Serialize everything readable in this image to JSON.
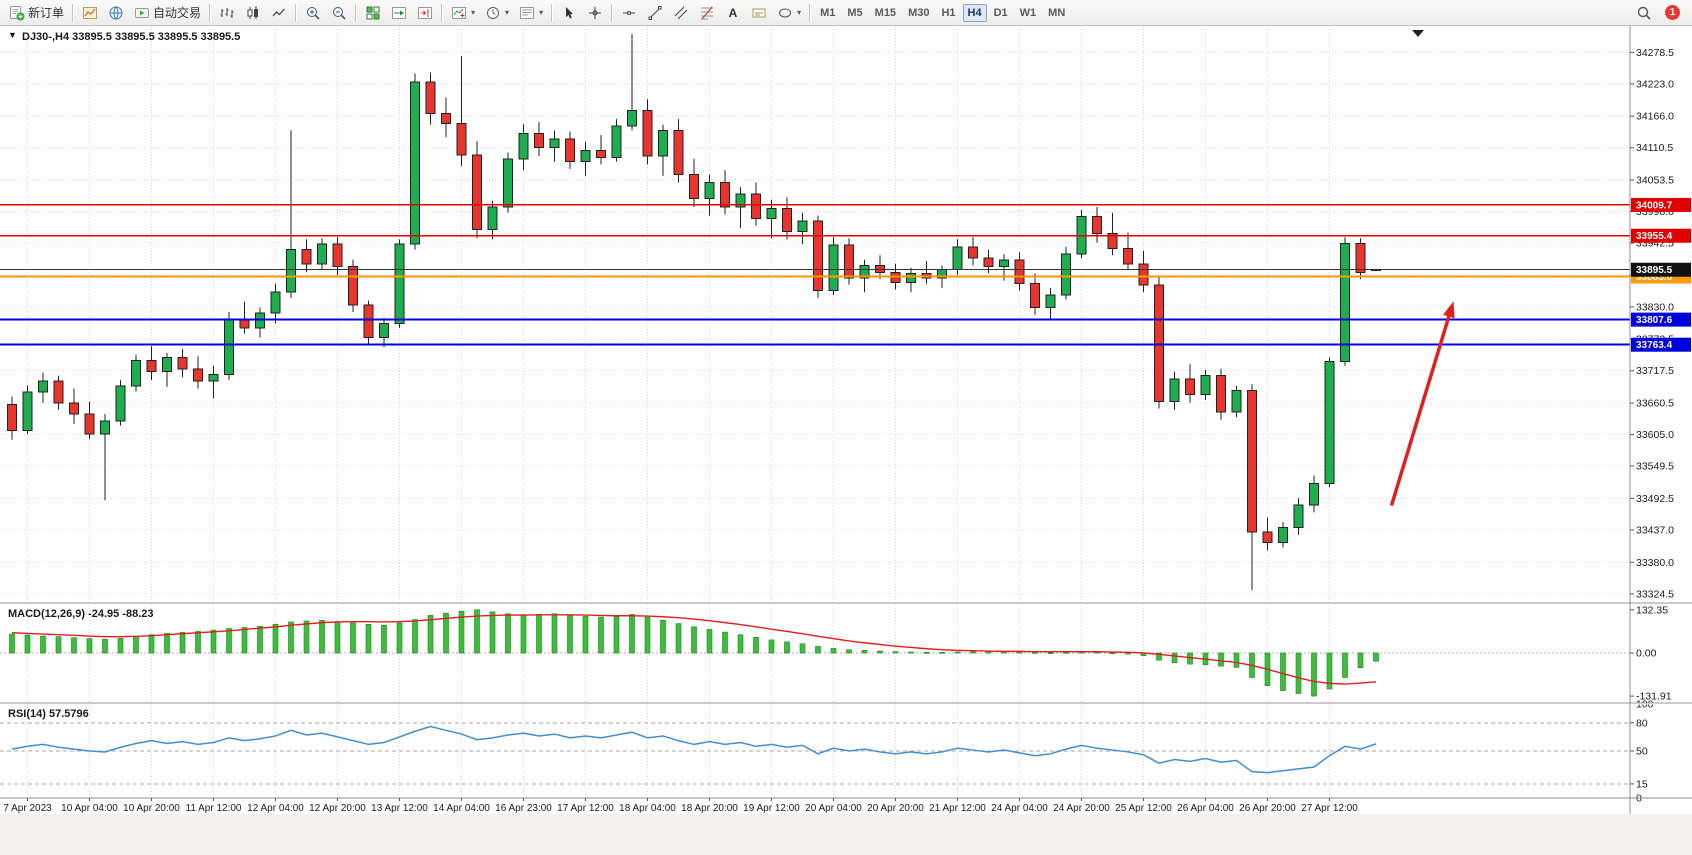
{
  "toolbar": {
    "caret_glyph": "▾",
    "groups": [
      {
        "items": [
          {
            "id": "new-order-button",
            "icon": "new-order",
            "label": "新订单"
          }
        ]
      },
      {
        "items": [
          {
            "id": "new-chart-button",
            "icon": "chart-plus"
          },
          {
            "id": "profiles-button",
            "icon": "globe"
          },
          {
            "id": "autotrading-button",
            "icon": "autotrading",
            "label": "自动交易"
          }
        ]
      },
      {
        "items": [
          {
            "id": "bar-chart-button",
            "icon": "bar-type"
          },
          {
            "id": "candlestick-chart-button",
            "icon": "candle-type"
          },
          {
            "id": "line-chart-button",
            "icon": "line-type"
          }
        ]
      },
      {
        "items": [
          {
            "id": "zoom-in-button",
            "icon": "zoom-in"
          },
          {
            "id": "zoom-out-button",
            "icon": "zoom-out"
          }
        ]
      },
      {
        "items": [
          {
            "id": "tile-windows-button",
            "icon": "tile"
          },
          {
            "id": "auto-scroll-button",
            "icon": "auto-scroll"
          },
          {
            "id": "chart-shift-button",
            "icon": "chart-shift"
          }
        ]
      },
      {
        "items": [
          {
            "id": "indicators-button",
            "icon": "indicators",
            "caret": true
          },
          {
            "id": "periods-button",
            "icon": "clock",
            "caret": true
          },
          {
            "id": "templates-button",
            "icon": "templates",
            "caret": true
          }
        ]
      },
      {
        "items": [
          {
            "id": "cursor-button",
            "icon": "cursor"
          },
          {
            "id": "crosshair-button",
            "icon": "crosshair"
          }
        ]
      },
      {
        "items": [
          {
            "id": "horizontal-line-button",
            "icon": "hline-tool"
          },
          {
            "id": "trendline-button",
            "icon": "trendline-tool"
          },
          {
            "id": "channel-button",
            "icon": "channel-tool"
          },
          {
            "id": "fibonacci-button",
            "icon": "fibo-tool"
          },
          {
            "id": "text-button",
            "icon": "text-tool"
          },
          {
            "id": "label-button",
            "icon": "label-tool"
          },
          {
            "id": "shapes-button",
            "icon": "shapes-tool",
            "caret": true
          }
        ]
      }
    ],
    "timeframes": [
      "M1",
      "M5",
      "M15",
      "M30",
      "H1",
      "H4",
      "D1",
      "W1",
      "MN"
    ],
    "active_timeframe": "H4",
    "notification_count": "1"
  },
  "chart": {
    "title_marker": "▼",
    "title": "DJ30-,H4 33895.5 33895.5 33895.5 33895.5",
    "symbol": "DJ30-",
    "timeframe": "H4",
    "last_quote": {
      "open": "33895.5",
      "high": "33895.5",
      "low": "33895.5",
      "close": "33895.5"
    }
  },
  "chart_data": [
    {
      "type": "candlestick",
      "title": "DJ30- H4",
      "y_range": [
        33310,
        34325
      ],
      "y_ticks": [
        34278.5,
        34223.0,
        34166.0,
        34110.5,
        34053.5,
        33998.0,
        33942.5,
        33886.0,
        33830.0,
        33773.5,
        33717.5,
        33660.5,
        33605.0,
        33549.5,
        33492.5,
        33437.0,
        33380.0,
        33324.5
      ],
      "x_labels": [
        "7 Apr 2023",
        "10 Apr 04:00",
        "10 Apr 20:00",
        "11 Apr 12:00",
        "12 Apr 04:00",
        "12 Apr 20:00",
        "13 Apr 12:00",
        "14 Apr 04:00",
        "16 Apr 23:00",
        "17 Apr 12:00",
        "18 Apr 04:00",
        "18 Apr 20:00",
        "19 Apr 12:00",
        "20 Apr 04:00",
        "20 Apr 20:00",
        "21 Apr 12:00",
        "24 Apr 04:00",
        "24 Apr 20:00",
        "25 Apr 12:00",
        "26 Apr 04:00",
        "26 Apr 20:00",
        "27 Apr 12:00"
      ],
      "x_label_indices": [
        1,
        5,
        9,
        13,
        17,
        21,
        25,
        29,
        33,
        37,
        41,
        45,
        49,
        53,
        57,
        61,
        65,
        69,
        73,
        77,
        81,
        85
      ],
      "candles": [
        [
          33658,
          33672,
          33596,
          33612
        ],
        [
          33612,
          33692,
          33606,
          33680
        ],
        [
          33680,
          33714,
          33661,
          33699
        ],
        [
          33699,
          33709,
          33649,
          33661
        ],
        [
          33661,
          33686,
          33624,
          33641
        ],
        [
          33641,
          33663,
          33597,
          33606
        ],
        [
          33606,
          33641,
          33489,
          33629
        ],
        [
          33629,
          33701,
          33621,
          33691
        ],
        [
          33691,
          33746,
          33681,
          33736
        ],
        [
          33736,
          33761,
          33701,
          33716
        ],
        [
          33716,
          33749,
          33689,
          33741
        ],
        [
          33741,
          33756,
          33706,
          33721
        ],
        [
          33721,
          33743,
          33686,
          33699
        ],
        [
          33699,
          33726,
          33669,
          33711
        ],
        [
          33711,
          33821,
          33701,
          33809
        ],
        [
          33809,
          33839,
          33783,
          33793
        ],
        [
          33793,
          33829,
          33776,
          33819
        ],
        [
          33819,
          33871,
          33801,
          33856
        ],
        [
          33856,
          34141,
          33846,
          33931
        ],
        [
          33931,
          33949,
          33891,
          33906
        ],
        [
          33906,
          33951,
          33896,
          33941
        ],
        [
          33941,
          33953,
          33886,
          33901
        ],
        [
          33901,
          33913,
          33821,
          33833
        ],
        [
          33833,
          33841,
          33763,
          33776
        ],
        [
          33776,
          33811,
          33759,
          33801
        ],
        [
          33801,
          33949,
          33793,
          33941
        ],
        [
          33941,
          34241,
          33931,
          34226
        ],
        [
          34226,
          34243,
          34151,
          34171
        ],
        [
          34171,
          34199,
          34129,
          34153
        ],
        [
          34153,
          34272,
          34078,
          34098
        ],
        [
          34098,
          34122,
          33951,
          33966
        ],
        [
          33966,
          34017,
          33949,
          34006
        ],
        [
          34006,
          34102,
          33996,
          34091
        ],
        [
          34091,
          34152,
          34071,
          34136
        ],
        [
          34136,
          34156,
          34096,
          34111
        ],
        [
          34111,
          34141,
          34086,
          34126
        ],
        [
          34126,
          34139,
          34073,
          34086
        ],
        [
          34086,
          34121,
          34061,
          34106
        ],
        [
          34106,
          34133,
          34081,
          34093
        ],
        [
          34093,
          34161,
          34086,
          34149
        ],
        [
          34149,
          34311,
          34141,
          34176
        ],
        [
          34176,
          34196,
          34081,
          34096
        ],
        [
          34096,
          34151,
          34061,
          34141
        ],
        [
          34141,
          34161,
          34049,
          34063
        ],
        [
          34063,
          34091,
          34006,
          34021
        ],
        [
          34021,
          34063,
          33991,
          34049
        ],
        [
          34049,
          34071,
          33993,
          34006
        ],
        [
          34006,
          34041,
          33969,
          34029
        ],
        [
          34029,
          34049,
          33973,
          33986
        ],
        [
          33986,
          34019,
          33951,
          34003
        ],
        [
          34003,
          34023,
          33949,
          33963
        ],
        [
          33963,
          33996,
          33941,
          33981
        ],
        [
          33981,
          33991,
          33846,
          33859
        ],
        [
          33859,
          33953,
          33851,
          33939
        ],
        [
          33939,
          33951,
          33869,
          33881
        ],
        [
          33881,
          33913,
          33856,
          33903
        ],
        [
          33903,
          33921,
          33879,
          33891
        ],
        [
          33891,
          33906,
          33861,
          33873
        ],
        [
          33873,
          33899,
          33856,
          33889
        ],
        [
          33889,
          33911,
          33871,
          33881
        ],
        [
          33881,
          33903,
          33863,
          33896
        ],
        [
          33896,
          33949,
          33886,
          33936
        ],
        [
          33936,
          33953,
          33903,
          33916
        ],
        [
          33916,
          33931,
          33889,
          33901
        ],
        [
          33901,
          33923,
          33876,
          33913
        ],
        [
          33913,
          33926,
          33859,
          33871
        ],
        [
          33871,
          33889,
          33816,
          33829
        ],
        [
          33829,
          33863,
          33809,
          33851
        ],
        [
          33851,
          33936,
          33843,
          33923
        ],
        [
          33923,
          34001,
          33916,
          33989
        ],
        [
          33989,
          34006,
          33943,
          33959
        ],
        [
          33959,
          33996,
          33921,
          33933
        ],
        [
          33933,
          33961,
          33896,
          33906
        ],
        [
          33906,
          33929,
          33856,
          33869
        ],
        [
          33869,
          33883,
          33651,
          33663
        ],
        [
          33663,
          33716,
          33649,
          33703
        ],
        [
          33703,
          33729,
          33661,
          33676
        ],
        [
          33676,
          33719,
          33666,
          33709
        ],
        [
          33709,
          33721,
          33631,
          33645
        ],
        [
          33645,
          33691,
          33636,
          33683
        ],
        [
          33683,
          33694,
          33331,
          33433
        ],
        [
          33433,
          33459,
          33401,
          33415
        ],
        [
          33415,
          33451,
          33406,
          33441
        ],
        [
          33441,
          33493,
          33428,
          33481
        ],
        [
          33481,
          33533,
          33468,
          33519
        ],
        [
          33519,
          33741,
          33512,
          33734
        ],
        [
          33734,
          33953,
          33726,
          33942
        ],
        [
          33942,
          33951,
          33879,
          33891
        ],
        [
          33895.5,
          33895.5,
          33895.5,
          33895.5
        ]
      ],
      "hlines": [
        {
          "value": 34009.7,
          "color": "#e00000",
          "width": 1.4,
          "label_bg": "#e00000"
        },
        {
          "value": 33955.4,
          "color": "#e00000",
          "width": 1.4,
          "label_bg": "#e00000"
        },
        {
          "value": 33883.6,
          "color": "#ff9a00",
          "width": 2.4,
          "label_bg": "#ff9a00"
        },
        {
          "value": 33807.6,
          "color": "#0000dd",
          "width": 2,
          "label_bg": "#0000dd"
        },
        {
          "value": 33763.4,
          "color": "#0000dd",
          "width": 2,
          "label_bg": "#0000dd"
        }
      ],
      "current_price": {
        "value": 33895.5,
        "color": "#333333",
        "label_bg": "#111111"
      },
      "annotations": {
        "arrow": {
          "from_bar": 89,
          "from_price": 33480,
          "to_bar": 93,
          "to_price": 33840,
          "color": "#e02020"
        }
      },
      "colors": {
        "bull": "#1fae4f",
        "bear": "#e8352e",
        "outline": "#222222"
      }
    },
    {
      "type": "bar",
      "name": "MACD",
      "label": "MACD(12,26,9) -24.95 -88.23",
      "value_main": -24.95,
      "value_signal": -88.23,
      "y_range": [
        -150,
        150
      ],
      "y_ticks": [
        {
          "v": 132.35,
          "t": "132.35"
        },
        {
          "v": 0,
          "t": "0.00"
        },
        {
          "v": -131.91,
          "t": "-131.91"
        }
      ],
      "histogram": [
        58,
        55,
        52,
        50,
        47,
        44,
        42,
        45,
        50,
        56,
        60,
        63,
        66,
        70,
        75,
        78,
        82,
        88,
        95,
        98,
        100,
        96,
        92,
        88,
        85,
        92,
        102,
        115,
        122,
        128,
        132.35,
        126,
        120,
        116,
        118,
        120,
        116,
        112,
        110,
        112,
        118,
        110,
        100,
        90,
        80,
        72,
        64,
        56,
        48,
        40,
        34,
        28,
        20,
        14,
        10,
        8,
        6,
        4,
        3,
        2,
        2,
        3,
        4,
        5,
        5,
        4,
        2,
        1,
        2,
        4,
        3,
        1,
        -2,
        -8,
        -22,
        -30,
        -34,
        -36,
        -40,
        -44,
        -75,
        -100,
        -115,
        -124,
        -131.91,
        -110,
        -75,
        -45,
        -24.95
      ],
      "signal": [
        62,
        60,
        58,
        56,
        54,
        52,
        50,
        50,
        51,
        53,
        56,
        59,
        62,
        65,
        68,
        72,
        76,
        80,
        85,
        89,
        93,
        95,
        96,
        96,
        95,
        96,
        98,
        102,
        106,
        110,
        113,
        115,
        116,
        116,
        117,
        117,
        117,
        116,
        115,
        114,
        114,
        113,
        111,
        108,
        104,
        99,
        93,
        87,
        80,
        73,
        66,
        59,
        51,
        44,
        37,
        31,
        26,
        21,
        17,
        13,
        10,
        8,
        7,
        6,
        5,
        5,
        4,
        4,
        4,
        4,
        4,
        3,
        2,
        0,
        -4,
        -9,
        -14,
        -19,
        -24,
        -29,
        -38,
        -50,
        -63,
        -76,
        -87,
        -93,
        -95,
        -92,
        -88.23
      ],
      "colors": {
        "histogram": "#3fbc3f",
        "histogram_outline": "#128a12",
        "signal": "#e02020"
      }
    },
    {
      "type": "line",
      "name": "RSI",
      "label": "RSI(14) 57.5796",
      "value": 57.5796,
      "y_range": [
        0,
        100
      ],
      "y_ticks": [
        100,
        80,
        50,
        15,
        0
      ],
      "levels": [
        80,
        50,
        15
      ],
      "values": [
        52,
        55,
        57,
        54,
        52,
        50,
        49,
        54,
        58,
        61,
        58,
        60,
        57,
        59,
        64,
        61,
        63,
        66,
        72,
        67,
        69,
        65,
        61,
        57,
        59,
        65,
        71,
        76,
        72,
        68,
        62,
        64,
        67,
        69,
        66,
        68,
        64,
        66,
        64,
        67,
        70,
        64,
        66,
        61,
        57,
        60,
        57,
        59,
        55,
        57,
        54,
        56,
        47,
        53,
        50,
        52,
        49,
        47,
        49,
        47,
        49,
        53,
        51,
        49,
        51,
        48,
        45,
        47,
        52,
        56,
        53,
        51,
        49,
        46,
        37,
        41,
        39,
        42,
        38,
        40,
        28,
        27,
        29,
        31,
        33,
        45,
        55,
        52,
        57.58
      ],
      "colors": {
        "line": "#3f8fd6"
      }
    }
  ]
}
